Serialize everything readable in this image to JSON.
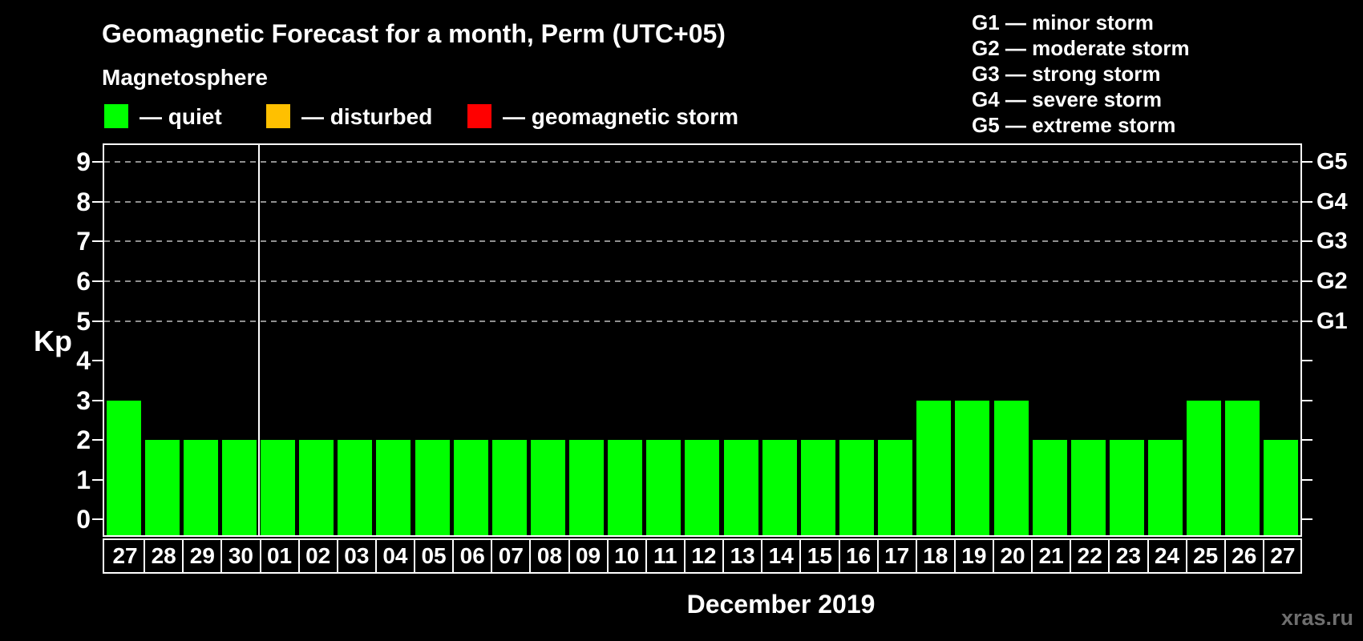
{
  "header": {
    "subtitle": "Magnetosphere"
  },
  "legend": {
    "items": [
      {
        "label": "— quiet",
        "color": "#00ff00"
      },
      {
        "label": "— disturbed",
        "color": "#ffc000"
      },
      {
        "label": "— geomagnetic storm",
        "color": "#ff0000"
      }
    ]
  },
  "g_legend": {
    "items": [
      "G1 — minor storm",
      "G2 — moderate storm",
      "G3 — strong storm",
      "G4 — severe storm",
      "G5 — extreme storm"
    ]
  },
  "chart_data": {
    "type": "bar",
    "title": "Geomagnetic Forecast for a month, Perm (UTC+05)",
    "xlabel": "December 2019",
    "ylabel": "Kp",
    "ylim": [
      0,
      9
    ],
    "grid": "dashed horizontal at Kp 5-9",
    "categories": [
      "27",
      "28",
      "29",
      "30",
      "01",
      "02",
      "03",
      "04",
      "05",
      "06",
      "07",
      "08",
      "09",
      "10",
      "11",
      "12",
      "13",
      "14",
      "15",
      "16",
      "17",
      "18",
      "19",
      "20",
      "21",
      "22",
      "23",
      "24",
      "25",
      "26",
      "27"
    ],
    "values": [
      3,
      2,
      2,
      2,
      2,
      2,
      2,
      2,
      2,
      2,
      2,
      2,
      2,
      2,
      2,
      2,
      2,
      2,
      2,
      2,
      2,
      3,
      3,
      3,
      2,
      2,
      2,
      2,
      3,
      3,
      2
    ],
    "separator_after_index": 3,
    "y_ticks": [
      0,
      1,
      2,
      3,
      4,
      5,
      6,
      7,
      8,
      9
    ],
    "grid_kp": [
      5,
      6,
      7,
      8,
      9
    ],
    "right_axis": {
      "labels": [
        {
          "kp": 5,
          "label": "G1"
        },
        {
          "kp": 6,
          "label": "G2"
        },
        {
          "kp": 7,
          "label": "G3"
        },
        {
          "kp": 8,
          "label": "G4"
        },
        {
          "kp": 9,
          "label": "G5"
        }
      ]
    },
    "colors": {
      "quiet": "#00ff00",
      "disturbed": "#ffc000",
      "storm": "#ff0000"
    }
  },
  "watermark": "xras.ru"
}
